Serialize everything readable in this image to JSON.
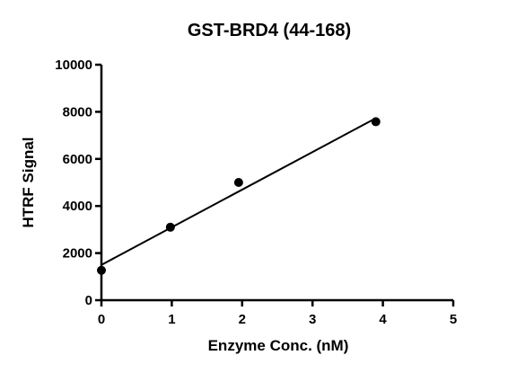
{
  "chart_data": {
    "type": "scatter",
    "title": "GST-BRD4 (44-168)",
    "xlabel": "Enzyme Conc. (nM)",
    "ylabel": "HTRF Signal",
    "xlim": [
      0,
      5
    ],
    "ylim": [
      0,
      10000
    ],
    "x_ticks": [
      "0",
      "1",
      "2",
      "3",
      "4",
      "5"
    ],
    "y_ticks": [
      "0",
      "2000",
      "4000",
      "6000",
      "8000",
      "10000"
    ],
    "grid": false,
    "series": [
      {
        "x": [
          0,
          0.98,
          1.95,
          3.9
        ],
        "y": [
          1270,
          3100,
          5000,
          7580
        ],
        "marker": "circle",
        "color": "#000000"
      }
    ],
    "fit_line": {
      "x": [
        0,
        3.9
      ],
      "y": [
        1500,
        7730
      ],
      "color": "#000000"
    }
  }
}
